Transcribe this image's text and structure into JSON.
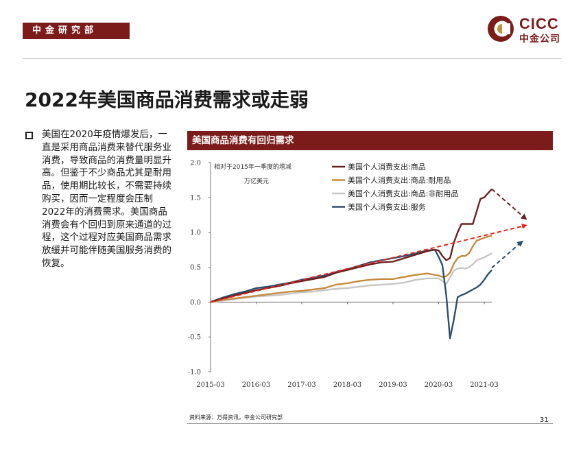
{
  "header": {
    "dept_label": "中金研究部",
    "logo_en": "CICC",
    "logo_cn": "中金公司"
  },
  "page_title": "2022年美国商品消费需求或走弱",
  "body_text": "美国在2020年疫情爆发后，一直是采用商品消费来替代服务业消费，导致商品的消费量明显升高。但鉴于不少商品尤其是耐用品，使用期比较长，不需要持续购买，因而一定程度会压制2022年的消费需求。美国商品消费会有个回归到原来通道的过程，这个过程对应美国商品需求放缓并可能伴随美国服务消费的恢复。",
  "chart_header": "美国商品消费有回归需求",
  "source": "资料来源：万得资讯，中金公司研究部",
  "page_number": "31",
  "colors": {
    "brand": "#7b1c1b",
    "goods": "#6b2222",
    "durable": "#c48a3e",
    "nondurable": "#c6c6c6",
    "services": "#2b4f6e",
    "trend": "#e8231e"
  },
  "chart_data": {
    "type": "line",
    "title": "美国商品消费有回归需求",
    "annotation_line1": "相对于2015年一季度的增减",
    "annotation_line2": "万亿美元",
    "ylim": [
      -1.0,
      2.0
    ],
    "y_ticks": [
      "2.0",
      "1.5",
      "1.0",
      "0.5",
      "0.0",
      "-0.5",
      "-1.0"
    ],
    "y_tick_values": [
      2.0,
      1.5,
      1.0,
      0.5,
      0.0,
      -0.5,
      -1.0
    ],
    "x_ticks": [
      "2015-03",
      "2016-03",
      "2017-03",
      "2018-03",
      "2019-03",
      "2020-03",
      "2021-03"
    ],
    "x_tick_values": [
      0,
      12,
      24,
      36,
      48,
      60,
      72
    ],
    "xlim": [
      0,
      75
    ],
    "legend_position": "top-right",
    "series": [
      {
        "name": "美国个人消费支出:商品",
        "color": "#6b2222",
        "x": [
          0,
          3,
          6,
          9,
          12,
          15,
          18,
          21,
          24,
          27,
          30,
          33,
          36,
          39,
          42,
          45,
          48,
          51,
          54,
          57,
          59,
          60,
          61,
          62,
          63,
          64,
          65,
          66,
          67,
          68,
          69,
          70,
          71,
          72,
          73,
          74
        ],
        "y": [
          0,
          0.05,
          0.09,
          0.13,
          0.17,
          0.2,
          0.23,
          0.27,
          0.3,
          0.33,
          0.36,
          0.42,
          0.46,
          0.5,
          0.54,
          0.57,
          0.58,
          0.63,
          0.68,
          0.73,
          0.75,
          0.74,
          0.66,
          0.6,
          0.63,
          0.85,
          1.0,
          1.12,
          1.12,
          1.12,
          1.12,
          1.3,
          1.48,
          1.5,
          1.56,
          1.62
        ]
      },
      {
        "name": "美国个人消费支出:商品:耐用品",
        "color": "#c48a3e",
        "x": [
          0,
          3,
          6,
          9,
          12,
          15,
          18,
          21,
          24,
          27,
          30,
          33,
          36,
          39,
          42,
          45,
          48,
          51,
          54,
          57,
          60,
          61,
          62,
          63,
          64,
          65,
          66,
          67,
          68,
          69,
          70,
          71,
          72,
          73,
          74
        ],
        "y": [
          0,
          0.03,
          0.05,
          0.07,
          0.09,
          0.11,
          0.13,
          0.15,
          0.16,
          0.18,
          0.2,
          0.25,
          0.27,
          0.3,
          0.32,
          0.33,
          0.33,
          0.36,
          0.39,
          0.41,
          0.38,
          0.36,
          0.37,
          0.42,
          0.55,
          0.63,
          0.66,
          0.66,
          0.7,
          0.8,
          0.88,
          0.9,
          0.92,
          0.94,
          0.95
        ]
      },
      {
        "name": "美国个人消费支出:商品:非耐用品",
        "color": "#c6c6c6",
        "x": [
          0,
          3,
          6,
          9,
          12,
          15,
          18,
          21,
          24,
          27,
          30,
          33,
          36,
          39,
          42,
          45,
          48,
          51,
          54,
          57,
          60,
          61,
          62,
          63,
          64,
          65,
          66,
          67,
          68,
          69,
          70,
          71,
          72,
          73,
          74
        ],
        "y": [
          0,
          0.02,
          0.04,
          0.06,
          0.08,
          0.09,
          0.1,
          0.12,
          0.14,
          0.15,
          0.17,
          0.19,
          0.2,
          0.22,
          0.24,
          0.25,
          0.26,
          0.28,
          0.32,
          0.34,
          0.34,
          0.3,
          0.26,
          0.35,
          0.45,
          0.48,
          0.49,
          0.48,
          0.5,
          0.54,
          0.6,
          0.62,
          0.64,
          0.67,
          0.7
        ]
      },
      {
        "name": "美国个人消费支出:服务",
        "color": "#2b4f6e",
        "x": [
          0,
          3,
          6,
          9,
          12,
          15,
          18,
          21,
          24,
          27,
          30,
          33,
          36,
          39,
          42,
          45,
          48,
          51,
          54,
          57,
          59,
          60,
          61,
          62,
          63,
          64,
          65,
          66,
          67,
          68,
          69,
          70,
          71,
          72,
          73,
          74
        ],
        "y": [
          0,
          0.06,
          0.11,
          0.15,
          0.2,
          0.22,
          0.25,
          0.28,
          0.32,
          0.35,
          0.38,
          0.43,
          0.47,
          0.52,
          0.57,
          0.6,
          0.63,
          0.66,
          0.7,
          0.74,
          0.75,
          0.65,
          0.53,
          0.1,
          -0.52,
          -0.25,
          0.07,
          0.1,
          0.12,
          0.15,
          0.18,
          0.21,
          0.25,
          0.32,
          0.4,
          0.46
        ]
      }
    ],
    "trend_line": {
      "x": [
        0,
        83
      ],
      "y": [
        0.0,
        1.1
      ],
      "color": "#e8231e",
      "style": "dashed"
    },
    "projection_arrows": [
      {
        "color": "#6b2222",
        "x": [
          74,
          83
        ],
        "y": [
          1.62,
          1.19
        ]
      },
      {
        "color": "#2b4f6e",
        "x": [
          74,
          82
        ],
        "y": [
          0.49,
          0.87
        ]
      }
    ]
  }
}
